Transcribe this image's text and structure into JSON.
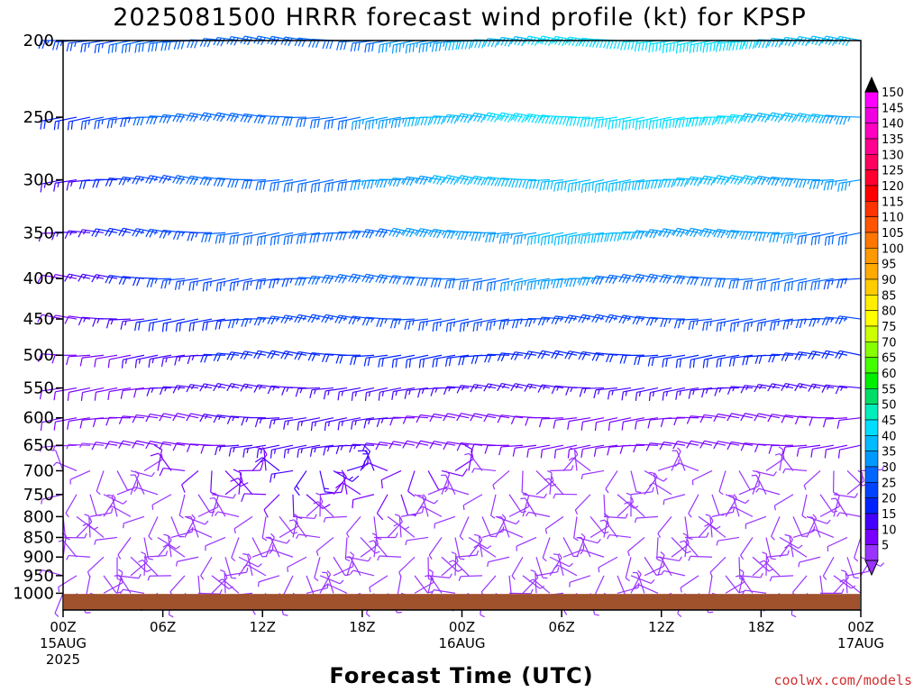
{
  "chart_data": {
    "type": "wind-barb time-height",
    "title": "2025081500 HRRR forecast wind profile (kt) for KPSP",
    "xlabel": "Forecast Time (UTC)",
    "ylabel": "",
    "credit": "coolwx.com/models",
    "y_axis": {
      "scale": "log-pressure",
      "ylim_hpa": [
        1050,
        200
      ],
      "ticks": [
        {
          "p": 200,
          "label": "200"
        },
        {
          "p": 250,
          "label": "250"
        },
        {
          "p": 300,
          "label": "300"
        },
        {
          "p": 350,
          "label": "350"
        },
        {
          "p": 400,
          "label": "400"
        },
        {
          "p": 450,
          "label": "450"
        },
        {
          "p": 500,
          "label": "500"
        },
        {
          "p": 550,
          "label": "550"
        },
        {
          "p": 600,
          "label": "600"
        },
        {
          "p": 650,
          "label": "650"
        },
        {
          "p": 700,
          "label": "700"
        },
        {
          "p": 750,
          "label": "750"
        },
        {
          "p": 800,
          "label": "800"
        },
        {
          "p": 850,
          "label": "850"
        },
        {
          "p": 900,
          "label": "900"
        },
        {
          "p": 950,
          "label": "950"
        },
        {
          "p": 1000,
          "label": "1000"
        }
      ]
    },
    "x_axis": {
      "range_hours": [
        0,
        48
      ],
      "ticks": [
        {
          "h": 0,
          "label": "00Z",
          "sub1": "15AUG",
          "sub2": "2025"
        },
        {
          "h": 6,
          "label": "06Z",
          "sub1": "",
          "sub2": ""
        },
        {
          "h": 12,
          "label": "12Z",
          "sub1": "",
          "sub2": ""
        },
        {
          "h": 18,
          "label": "18Z",
          "sub1": "",
          "sub2": ""
        },
        {
          "h": 24,
          "label": "00Z",
          "sub1": "16AUG",
          "sub2": ""
        },
        {
          "h": 30,
          "label": "06Z",
          "sub1": "",
          "sub2": ""
        },
        {
          "h": 36,
          "label": "12Z",
          "sub1": "",
          "sub2": ""
        },
        {
          "h": 42,
          "label": "18Z",
          "sub1": "",
          "sub2": ""
        },
        {
          "h": 48,
          "label": "00Z",
          "sub1": "17AUG",
          "sub2": ""
        }
      ]
    },
    "ground": {
      "color": "#a0522d",
      "surface_pressure_hpa": 1002
    },
    "grid": false,
    "legend": "colorbar right, wind speed (kt)",
    "colorbar": {
      "min": 5,
      "max": 150,
      "labels": [
        "150",
        "145",
        "140",
        "135",
        "130",
        "125",
        "120",
        "115",
        "110",
        "105",
        "100",
        "95",
        "90",
        "85",
        "80",
        "75",
        "70",
        "65",
        "60",
        "55",
        "50",
        "45",
        "40",
        "35",
        "30",
        "25",
        "20",
        "15",
        "10",
        "5"
      ],
      "colors": [
        "#ff00ff",
        "#f000e0",
        "#ff00c0",
        "#ff0090",
        "#ff0060",
        "#ff0030",
        "#ff0000",
        "#ff3300",
        "#ff5500",
        "#ff7700",
        "#ff9900",
        "#ffaa00",
        "#ffcc00",
        "#ffee00",
        "#ffff00",
        "#ccff00",
        "#88ff00",
        "#44ff00",
        "#00ee00",
        "#00dd66",
        "#00eebb",
        "#00ddff",
        "#00bbff",
        "#0099ff",
        "#0066ff",
        "#0044ff",
        "#0022ff",
        "#4400ff",
        "#7700ff",
        "#9933ff"
      ]
    },
    "series": [
      {
        "p": 200,
        "speed_kt": [
          25,
          25,
          28,
          30,
          32,
          32,
          31,
          30,
          30,
          30,
          32,
          35,
          38,
          40,
          42,
          44,
          45,
          46,
          46,
          45,
          44,
          43,
          42,
          40,
          38
        ]
      },
      {
        "p": 250,
        "speed_kt": [
          20,
          22,
          25,
          28,
          30,
          30,
          30,
          30,
          30,
          32,
          34,
          38,
          40,
          42,
          44,
          46,
          47,
          47,
          46,
          45,
          44,
          42,
          40,
          38,
          36
        ]
      },
      {
        "p": 300,
        "speed_kt": [
          15,
          18,
          22,
          26,
          28,
          29,
          30,
          30,
          30,
          32,
          34,
          36,
          38,
          40,
          41,
          42,
          42,
          42,
          41,
          40,
          39,
          38,
          37,
          36,
          35
        ]
      },
      {
        "p": 350,
        "speed_kt": [
          12,
          15,
          20,
          24,
          27,
          28,
          29,
          29,
          30,
          31,
          32,
          34,
          35,
          36,
          37,
          38,
          38,
          38,
          37,
          36,
          35,
          34,
          33,
          32,
          32
        ]
      },
      {
        "p": 400,
        "speed_kt": [
          10,
          14,
          18,
          22,
          25,
          26,
          27,
          27,
          28,
          28,
          29,
          30,
          31,
          32,
          33,
          33,
          33,
          32,
          31,
          30,
          30,
          29,
          28,
          28,
          27
        ]
      },
      {
        "p": 450,
        "speed_kt": [
          10,
          12,
          15,
          18,
          20,
          22,
          23,
          24,
          24,
          24,
          25,
          25,
          26,
          26,
          27,
          27,
          27,
          26,
          26,
          25,
          25,
          24,
          24,
          23,
          23
        ]
      },
      {
        "p": 500,
        "speed_kt": [
          8,
          10,
          12,
          15,
          17,
          18,
          19,
          20,
          20,
          20,
          20,
          20,
          21,
          21,
          22,
          22,
          21,
          21,
          20,
          20,
          19,
          19,
          18,
          18,
          18
        ]
      },
      {
        "p": 550,
        "speed_kt": [
          8,
          9,
          10,
          12,
          14,
          15,
          16,
          17,
          17,
          17,
          16,
          16,
          16,
          17,
          17,
          17,
          17,
          16,
          16,
          15,
          15,
          15,
          14,
          14,
          14
        ]
      },
      {
        "p": 600,
        "speed_kt": [
          8,
          8,
          9,
          10,
          12,
          13,
          14,
          15,
          15,
          14,
          13,
          12,
          12,
          12,
          12,
          12,
          12,
          12,
          11,
          11,
          11,
          10,
          10,
          10,
          10
        ]
      },
      {
        "p": 650,
        "speed_kt": [
          7,
          7,
          8,
          9,
          10,
          12,
          14,
          15,
          15,
          14,
          12,
          10,
          9,
          9,
          9,
          9,
          9,
          9,
          8,
          8,
          8,
          8,
          8,
          8,
          8
        ]
      },
      {
        "p": 700,
        "speed_kt": [
          6,
          6,
          7,
          8,
          9,
          10,
          12,
          14,
          15,
          14,
          12,
          9,
          8,
          7,
          7,
          7,
          7,
          7,
          7,
          7,
          6,
          6,
          6,
          6,
          6
        ]
      },
      {
        "p": 750,
        "speed_kt": [
          5,
          5,
          5,
          6,
          7,
          8,
          10,
          12,
          12,
          10,
          8,
          6,
          6,
          5,
          5,
          5,
          5,
          5,
          5,
          5,
          5,
          5,
          5,
          5,
          5
        ]
      },
      {
        "p": 800,
        "speed_kt": [
          5,
          5,
          5,
          5,
          5,
          6,
          6,
          6,
          5,
          5,
          5,
          5,
          5,
          5,
          5,
          5,
          5,
          5,
          5,
          5,
          5,
          5,
          5,
          5,
          5
        ]
      },
      {
        "p": 850,
        "speed_kt": [
          5,
          5,
          5,
          5,
          5,
          5,
          6,
          6,
          5,
          5,
          5,
          5,
          5,
          5,
          5,
          5,
          5,
          5,
          5,
          5,
          5,
          5,
          5,
          5,
          5
        ]
      },
      {
        "p": 900,
        "speed_kt": [
          5,
          5,
          5,
          5,
          5,
          6,
          7,
          7,
          7,
          6,
          5,
          5,
          5,
          5,
          5,
          5,
          5,
          5,
          5,
          5,
          5,
          5,
          5,
          5,
          5
        ]
      },
      {
        "p": 950,
        "speed_kt": [
          5,
          5,
          5,
          5,
          5,
          5,
          6,
          6,
          6,
          5,
          5,
          5,
          5,
          5,
          5,
          5,
          5,
          5,
          5,
          5,
          5,
          5,
          5,
          5,
          5
        ]
      },
      {
        "p": 1000,
        "speed_kt": [
          5,
          5,
          5,
          5,
          5,
          5,
          5,
          5,
          5,
          5,
          5,
          5,
          5,
          5,
          5,
          5,
          5,
          5,
          5,
          5,
          5,
          5,
          5,
          5,
          5
        ]
      }
    ]
  }
}
